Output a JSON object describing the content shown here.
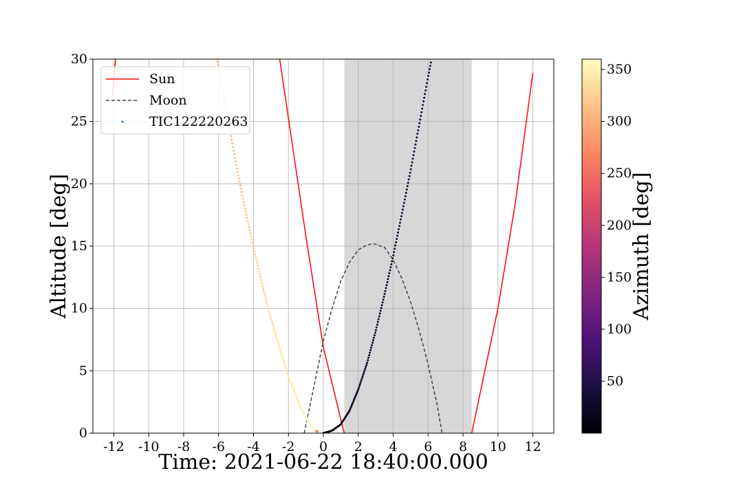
{
  "chart_data": {
    "type": "line",
    "xlabel": "Time: 2021-06-22 18:40:00.000",
    "ylabel": "Altitude [deg]",
    "xlim": [
      -13.2,
      13.2
    ],
    "ylim": [
      0,
      30
    ],
    "xticks": [
      -12,
      -10,
      -8,
      -6,
      -4,
      -2,
      0,
      2,
      4,
      6,
      8,
      10,
      12
    ],
    "xtick_labels": [
      "-12",
      "-10",
      "-8",
      "-6",
      "-4",
      "-2",
      "0",
      "2",
      "4",
      "6",
      "8",
      "10",
      "12"
    ],
    "yticks": [
      0,
      5,
      10,
      15,
      20,
      25,
      30
    ],
    "ytick_labels": [
      "0",
      "5",
      "10",
      "15",
      "20",
      "25",
      "30"
    ],
    "grid": true,
    "night_shading": {
      "x_start": 1.2,
      "x_end": 8.5,
      "color": "#d7d7d7"
    },
    "legend": {
      "position": "upper-left",
      "entries": [
        "Sun",
        "Moon",
        "TIC122220263"
      ]
    },
    "series": [
      {
        "name": "Sun",
        "style": "solid",
        "color": "#ff0000",
        "segments": [
          {
            "x": [
              -12.1,
              -11.9
            ],
            "y": [
              27.0,
              30.0
            ]
          },
          {
            "x": [
              -2.5,
              -1.0,
              0.0,
              1.0,
              1.2
            ],
            "y": [
              30.0,
              15.8,
              6.9,
              1.1,
              0.0
            ]
          },
          {
            "x": [
              8.5,
              10.0,
              11.0,
              12.0
            ],
            "y": [
              0.0,
              10.0,
              18.5,
              28.9
            ]
          }
        ]
      },
      {
        "name": "Moon",
        "style": "dashed",
        "color": "#444444",
        "x": [
          -1.1,
          -0.5,
          0.0,
          0.5,
          1.0,
          1.5,
          2.0,
          2.5,
          2.9,
          3.5,
          4.0,
          4.5,
          5.0,
          5.5,
          6.0,
          6.5,
          6.8
        ],
        "y": [
          0.0,
          4.0,
          7.4,
          10.0,
          12.2,
          13.7,
          14.7,
          15.1,
          15.2,
          14.9,
          13.9,
          12.4,
          10.5,
          8.2,
          5.5,
          2.4,
          0.0
        ]
      },
      {
        "name": "TIC122220263",
        "style": "points",
        "colorbar_values": "azimuth",
        "x": [
          -6.1,
          -6.0,
          -5.5,
          -5.0,
          -4.5,
          -4.0,
          -3.5,
          -3.0,
          -2.5,
          -2.0,
          -1.5,
          -1.0,
          -0.5,
          0.0,
          0.5,
          1.0,
          1.5,
          2.0,
          2.5,
          3.0,
          3.5,
          4.0,
          4.5,
          5.0,
          5.5,
          6.0,
          6.2
        ],
        "y": [
          30.0,
          29.4,
          25.4,
          21.6,
          18.1,
          14.9,
          11.9,
          9.2,
          6.8,
          4.6,
          2.7,
          1.2,
          0.2,
          0.0,
          0.2,
          0.7,
          1.8,
          3.5,
          5.6,
          8.2,
          11.1,
          14.2,
          17.6,
          21.1,
          24.8,
          28.6,
          30.0
        ],
        "azimuth": [
          300,
          302,
          306,
          311,
          316,
          321,
          327,
          333,
          339,
          345,
          351,
          356,
          359,
          5,
          10,
          14,
          18,
          21,
          24,
          27,
          30,
          33,
          36,
          39,
          42,
          45,
          46
        ]
      }
    ],
    "colorbar": {
      "label": "Azimuth [deg]",
      "colormap": "magma",
      "range": [
        0,
        360
      ],
      "ticks": [
        50,
        100,
        150,
        200,
        250,
        300,
        350
      ],
      "tick_labels": [
        "50",
        "100",
        "150",
        "200",
        "250",
        "300",
        "350"
      ]
    }
  }
}
